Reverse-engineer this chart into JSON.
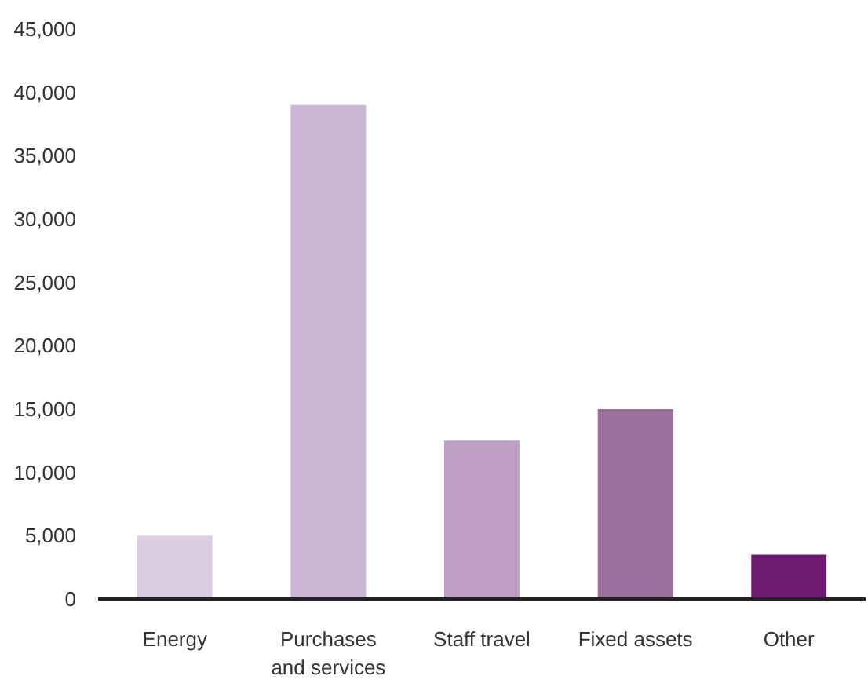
{
  "chart_data": {
    "type": "bar",
    "categories": [
      "Energy",
      "Purchases\nand services",
      "Staff travel",
      "Fixed assets",
      "Other"
    ],
    "values": [
      5000,
      39000,
      12500,
      15000,
      3500
    ],
    "colors": [
      "#dccde2",
      "#cbb6d3",
      "#bd9fc6",
      "#9e70a0",
      "#6e1a70"
    ],
    "ylim": [
      0,
      45000
    ],
    "yticks": [
      {
        "value": 0,
        "label": "0"
      },
      {
        "value": 5000,
        "label": "5,000"
      },
      {
        "value": 10000,
        "label": "10,000"
      },
      {
        "value": 15000,
        "label": "15,000"
      },
      {
        "value": 20000,
        "label": "20,000"
      },
      {
        "value": 25000,
        "label": "25,000"
      },
      {
        "value": 30000,
        "label": "30,000"
      },
      {
        "value": 35000,
        "label": "35,000"
      },
      {
        "value": 40000,
        "label": "40,000"
      },
      {
        "value": 45000,
        "label": "45,000"
      }
    ],
    "grid": false
  }
}
